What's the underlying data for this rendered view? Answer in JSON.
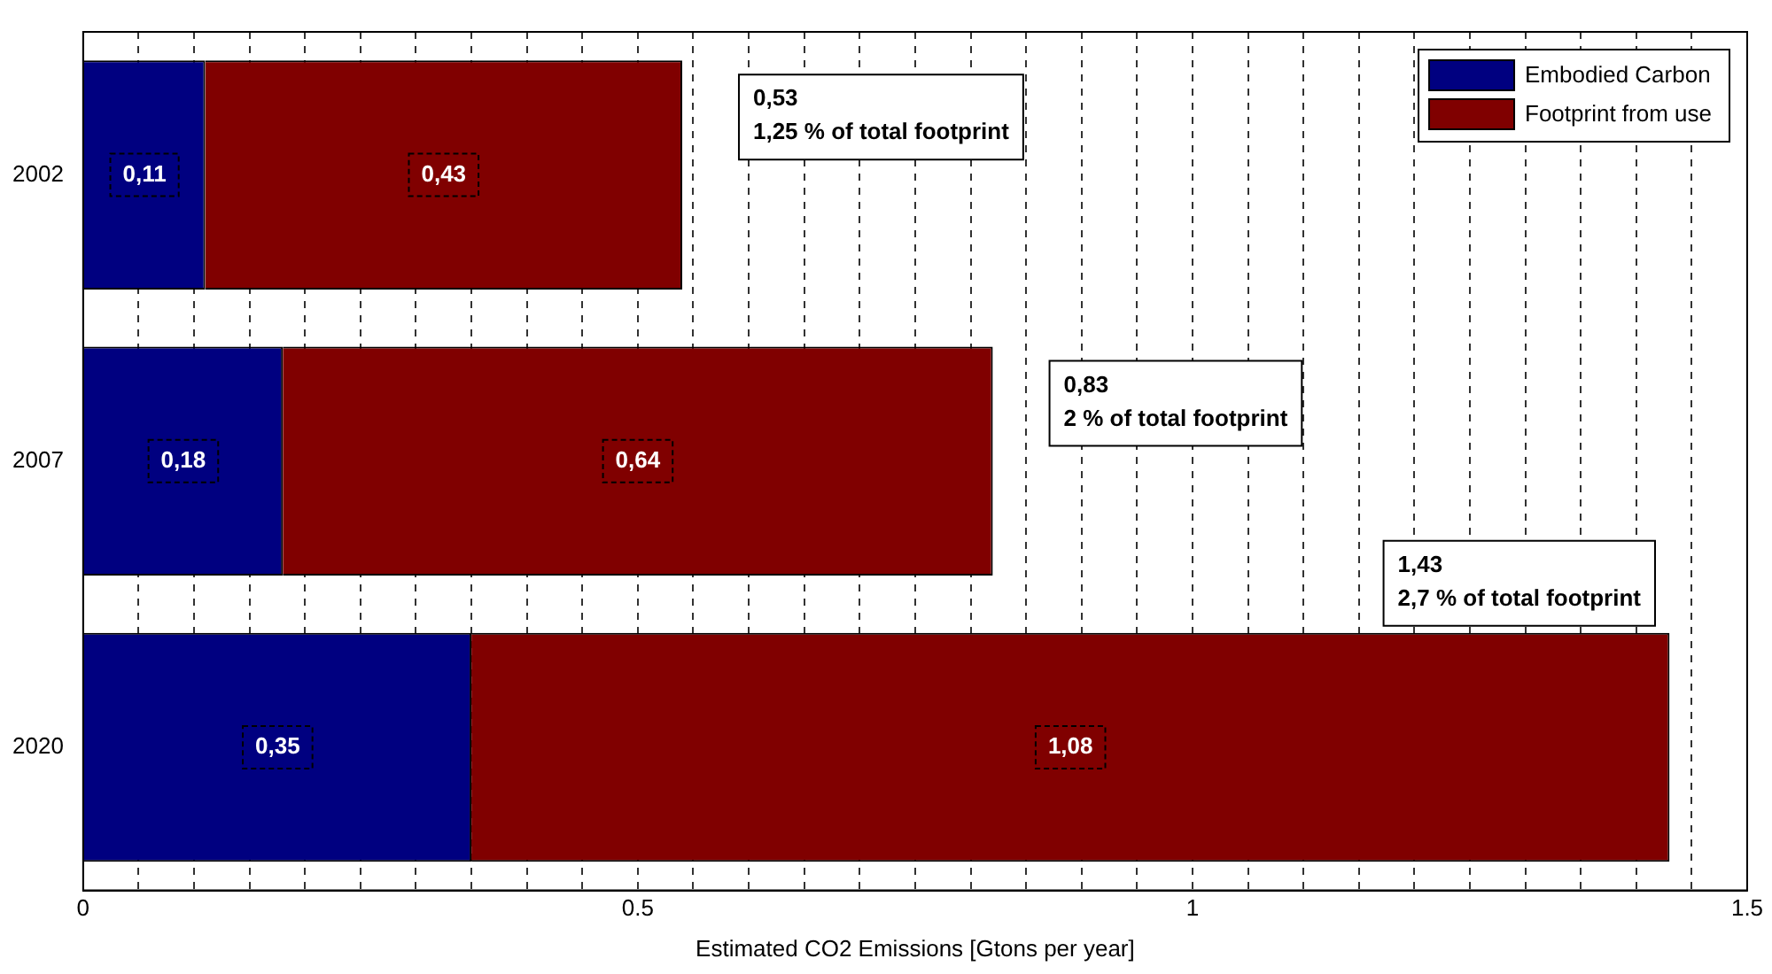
{
  "chart_data": {
    "type": "bar",
    "orientation": "horizontal",
    "stacked": true,
    "xlabel": "Estimated CO2 Emissions [Gtons per year]",
    "categories": [
      "2002",
      "2007",
      "2020"
    ],
    "series": [
      {
        "name": "Embodied Carbon",
        "color": "#000080",
        "values": [
          0.11,
          0.18,
          0.35
        ],
        "value_labels": [
          "0,11",
          "0,18",
          "0,35"
        ]
      },
      {
        "name": "Footprint from use",
        "color": "#800000",
        "values": [
          0.43,
          0.64,
          1.08
        ],
        "value_labels": [
          "0,43",
          "0,64",
          "1,08"
        ]
      }
    ],
    "xlim": [
      0,
      1.5
    ],
    "xticks": [
      0,
      {
        "value": 0.05,
        "label": null
      },
      {
        "value": 0.1,
        "label": null
      },
      {
        "value": 0.15,
        "label": null
      },
      {
        "value": 0.2,
        "label": null
      },
      {
        "value": 0.25,
        "label": null
      },
      {
        "value": 0.3,
        "label": null
      },
      {
        "value": 0.35,
        "label": null
      },
      {
        "value": 0.4,
        "label": null
      },
      {
        "value": 0.45,
        "label": null
      },
      0.5,
      {
        "value": 0.55,
        "label": null
      },
      {
        "value": 0.6,
        "label": null
      },
      {
        "value": 0.65,
        "label": null
      },
      {
        "value": 0.7,
        "label": null
      },
      {
        "value": 0.75,
        "label": null
      },
      {
        "value": 0.8,
        "label": null
      },
      {
        "value": 0.85,
        "label": null
      },
      {
        "value": 0.9,
        "label": null
      },
      {
        "value": 0.95,
        "label": null
      },
      1,
      {
        "value": 1.05,
        "label": null
      },
      {
        "value": 1.1,
        "label": null
      },
      {
        "value": 1.15,
        "label": null
      },
      {
        "value": 1.2,
        "label": null
      },
      {
        "value": 1.25,
        "label": null
      },
      {
        "value": 1.3,
        "label": null
      },
      {
        "value": 1.35,
        "label": null
      },
      {
        "value": 1.4,
        "label": null
      },
      {
        "value": 1.45,
        "label": null
      },
      1.5
    ],
    "annotations": [
      "0,53\n1,25 % of total footprint",
      "0,83\n2 % of total footprint",
      "1,43\n2,7 % of total footprint"
    ],
    "grid": "x",
    "line_style": "dashed",
    "legend": "top right"
  }
}
